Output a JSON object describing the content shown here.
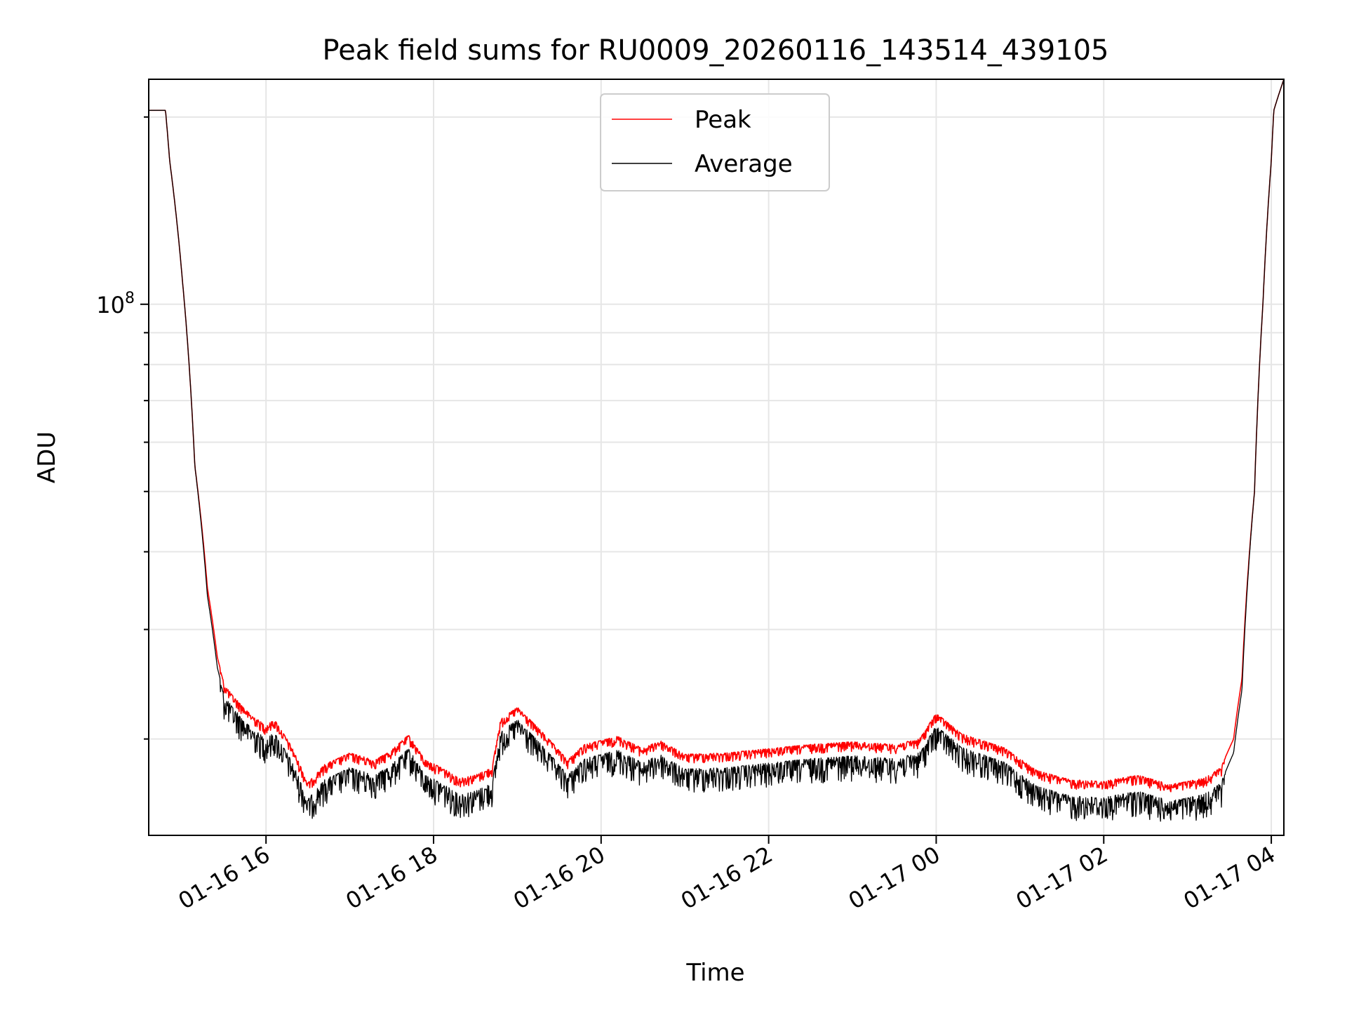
{
  "chart_data": {
    "type": "line",
    "title": "Peak field sums for RU0009_20260116_143514_439105",
    "xlabel": "Time",
    "ylabel": "ADU",
    "yscale": "log",
    "grid": true,
    "legend_position": "upper center",
    "xlim_hours": [
      14.6,
      28.15
    ],
    "ylim": [
      14000000,
      230000000
    ],
    "x_ticks": [
      {
        "hour": 16,
        "label": "01-16 16"
      },
      {
        "hour": 18,
        "label": "01-16 18"
      },
      {
        "hour": 20,
        "label": "01-16 20"
      },
      {
        "hour": 22,
        "label": "01-16 22"
      },
      {
        "hour": 24,
        "label": "01-17 00"
      },
      {
        "hour": 26,
        "label": "01-17 02"
      },
      {
        "hour": 28,
        "label": "01-17 04"
      }
    ],
    "y_major_ticks": [
      {
        "value": 100000000,
        "base": "10",
        "exp": "8"
      }
    ],
    "y_minor_ticks": [
      20000000,
      30000000,
      40000000,
      50000000,
      60000000,
      70000000,
      80000000,
      90000000,
      200000000
    ],
    "x_hours": [
      14.6,
      14.62,
      14.8,
      14.85,
      15.0,
      15.15,
      15.3,
      15.42,
      15.5,
      15.6,
      15.8,
      16.0,
      16.1,
      16.3,
      16.5,
      16.7,
      17.0,
      17.3,
      17.5,
      17.7,
      17.9,
      18.1,
      18.3,
      18.5,
      18.7,
      18.8,
      19.0,
      19.3,
      19.6,
      19.8,
      20.2,
      20.5,
      20.7,
      21.0,
      21.5,
      22.0,
      22.5,
      23.0,
      23.5,
      23.8,
      24.0,
      24.3,
      24.8,
      25.2,
      25.6,
      26.0,
      26.4,
      26.8,
      27.2,
      27.4,
      27.55,
      27.65,
      27.8,
      27.9,
      28.0,
      28.03,
      28.15
    ],
    "series": [
      {
        "name": "Peak",
        "color": "#ff0000",
        "values": [
          205000000,
          205000000,
          205000000,
          170000000,
          110000000,
          55000000,
          35000000,
          27000000,
          24500000,
          23500000,
          22000000,
          21000000,
          21500000,
          19500000,
          17000000,
          18200000,
          19000000,
          18500000,
          19200000,
          20300000,
          18500000,
          18000000,
          17300000,
          17500000,
          18000000,
          21500000,
          22500000,
          20500000,
          18500000,
          19600000,
          20200000,
          19300000,
          19900000,
          18900000,
          19000000,
          19300000,
          19600000,
          19800000,
          19600000,
          20000000,
          22000000,
          20400000,
          19400000,
          17800000,
          17200000,
          17100000,
          17500000,
          16900000,
          17300000,
          18000000,
          20000000,
          25000000,
          50000000,
          100000000,
          170000000,
          205000000,
          230000000
        ]
      },
      {
        "name": "Average",
        "color": "#000000",
        "values": [
          205000000,
          205000000,
          205000000,
          170000000,
          110000000,
          55000000,
          34000000,
          26000000,
          23500000,
          22500000,
          21000000,
          20000000,
          20500000,
          18500000,
          16000000,
          17200000,
          18000000,
          17500000,
          18200000,
          19300000,
          17500000,
          17000000,
          16300000,
          16500000,
          17000000,
          20500000,
          21500000,
          19500000,
          17500000,
          18600000,
          19200000,
          18300000,
          18900000,
          17900000,
          18000000,
          18300000,
          18600000,
          18800000,
          18600000,
          19000000,
          21000000,
          19400000,
          18400000,
          16800000,
          16200000,
          16100000,
          16500000,
          15900000,
          16300000,
          17000000,
          19000000,
          24000000,
          50000000,
          100000000,
          170000000,
          205000000,
          230000000
        ]
      }
    ]
  }
}
